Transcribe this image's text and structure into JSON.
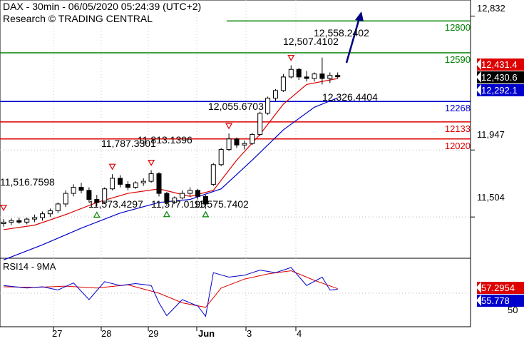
{
  "header": {
    "line1": "DAX - 30min - 06/05/2020 05:24:39 (UTC+2)",
    "line2": "Research © TRADING CENTRAL"
  },
  "levels": [
    {
      "label": "12800",
      "value": 12800,
      "color": "#008000"
    },
    {
      "label": "12590",
      "value": 12590,
      "color": "#008000"
    },
    {
      "label": "12268",
      "value": 12268,
      "color": "#0000cc"
    },
    {
      "label": "12133",
      "value": 12133,
      "color": "#dd0000"
    },
    {
      "label": "12020",
      "value": 12020,
      "color": "#dd0000"
    }
  ],
  "price_axis": [
    "12,832",
    "11,947",
    "11,504"
  ],
  "tags": [
    {
      "text": "12,431.4",
      "color": "#dd0000",
      "value": 12431.4
    },
    {
      "text": "12,430.6",
      "color": "#000000",
      "value": 12430.6
    },
    {
      "text": "12,292.1",
      "color": "#0000cc",
      "value": 12292.1
    }
  ],
  "annotations": [
    {
      "text": "11,516.7598",
      "marker": "peak"
    },
    {
      "text": "11,787.3301",
      "marker": "peak"
    },
    {
      "text": "11,813.1396",
      "marker": "peak"
    },
    {
      "text": "12,055.6703",
      "marker": "peak"
    },
    {
      "text": "12,507.4102",
      "marker": "peak"
    },
    {
      "text": "12,558.2402",
      "marker": "none"
    },
    {
      "text": "11,573.4297",
      "marker": "trough"
    },
    {
      "text": "11,577.0195",
      "marker": "trough"
    },
    {
      "text": "11,575.7402",
      "marker": "trough"
    },
    {
      "text": "12,326.4404",
      "marker": "none"
    }
  ],
  "rsi": {
    "title": "RSI14 - 9MA",
    "tags": [
      {
        "text": "57.2954",
        "color": "#dd0000",
        "value": 57.2954
      },
      {
        "text": "55.778",
        "color": "#0000cc",
        "value": 55.778
      }
    ],
    "axis": [
      "50"
    ]
  },
  "dates": [
    "27",
    "28",
    "29",
    "Jun",
    "3",
    "4"
  ],
  "chart_data": {
    "type": "candlestick",
    "ylim": [
      11250,
      12920
    ],
    "candles": [
      {
        "x": 1,
        "o": 11460,
        "h": 11490,
        "l": 11440,
        "c": 11470
      },
      {
        "x": 2,
        "o": 11470,
        "h": 11495,
        "l": 11450,
        "c": 11480
      },
      {
        "x": 3,
        "o": 11480,
        "h": 11500,
        "l": 11460,
        "c": 11470
      },
      {
        "x": 4,
        "o": 11470,
        "h": 11500,
        "l": 11455,
        "c": 11490
      },
      {
        "x": 5,
        "o": 11490,
        "h": 11520,
        "l": 11470,
        "c": 11500
      },
      {
        "x": 6,
        "o": 11500,
        "h": 11540,
        "l": 11480,
        "c": 11525
      },
      {
        "x": 7,
        "o": 11525,
        "h": 11560,
        "l": 11505,
        "c": 11545
      },
      {
        "x": 8,
        "o": 11545,
        "h": 11600,
        "l": 11530,
        "c": 11590
      },
      {
        "x": 9,
        "o": 11590,
        "h": 11680,
        "l": 11570,
        "c": 11660
      },
      {
        "x": 10,
        "o": 11660,
        "h": 11720,
        "l": 11640,
        "c": 11700
      },
      {
        "x": 11,
        "o": 11700,
        "h": 11730,
        "l": 11660,
        "c": 11680
      },
      {
        "x": 12,
        "o": 11680,
        "h": 11700,
        "l": 11600,
        "c": 11620
      },
      {
        "x": 13,
        "o": 11620,
        "h": 11650,
        "l": 11573,
        "c": 11600
      },
      {
        "x": 14,
        "o": 11600,
        "h": 11700,
        "l": 11590,
        "c": 11690
      },
      {
        "x": 15,
        "o": 11690,
        "h": 11787,
        "l": 11680,
        "c": 11760
      },
      {
        "x": 16,
        "o": 11760,
        "h": 11780,
        "l": 11700,
        "c": 11720
      },
      {
        "x": 17,
        "o": 11720,
        "h": 11740,
        "l": 11680,
        "c": 11700
      },
      {
        "x": 18,
        "o": 11700,
        "h": 11740,
        "l": 11690,
        "c": 11730
      },
      {
        "x": 19,
        "o": 11730,
        "h": 11760,
        "l": 11710,
        "c": 11740
      },
      {
        "x": 20,
        "o": 11740,
        "h": 11813,
        "l": 11730,
        "c": 11790
      },
      {
        "x": 21,
        "o": 11790,
        "h": 11800,
        "l": 11640,
        "c": 11660
      },
      {
        "x": 22,
        "o": 11660,
        "h": 11670,
        "l": 11577,
        "c": 11600
      },
      {
        "x": 23,
        "o": 11600,
        "h": 11640,
        "l": 11590,
        "c": 11630
      },
      {
        "x": 24,
        "o": 11630,
        "h": 11680,
        "l": 11620,
        "c": 11660
      },
      {
        "x": 25,
        "o": 11660,
        "h": 11700,
        "l": 11640,
        "c": 11680
      },
      {
        "x": 26,
        "o": 11680,
        "h": 11690,
        "l": 11620,
        "c": 11640
      },
      {
        "x": 27,
        "o": 11640,
        "h": 11650,
        "l": 11576,
        "c": 11590
      },
      {
        "x": 28,
        "o": 11720,
        "h": 11860,
        "l": 11710,
        "c": 11850
      },
      {
        "x": 29,
        "o": 11850,
        "h": 11960,
        "l": 11840,
        "c": 11950
      },
      {
        "x": 30,
        "o": 11950,
        "h": 12056,
        "l": 11940,
        "c": 12020
      },
      {
        "x": 31,
        "o": 12020,
        "h": 12030,
        "l": 11960,
        "c": 11980
      },
      {
        "x": 32,
        "o": 11980,
        "h": 12010,
        "l": 11950,
        "c": 11990
      },
      {
        "x": 33,
        "o": 11990,
        "h": 12060,
        "l": 11980,
        "c": 12050
      },
      {
        "x": 34,
        "o": 12050,
        "h": 12200,
        "l": 12040,
        "c": 12190
      },
      {
        "x": 35,
        "o": 12190,
        "h": 12300,
        "l": 12180,
        "c": 12290
      },
      {
        "x": 36,
        "o": 12290,
        "h": 12350,
        "l": 12270,
        "c": 12340
      },
      {
        "x": 37,
        "o": 12340,
        "h": 12450,
        "l": 12330,
        "c": 12430
      },
      {
        "x": 38,
        "o": 12430,
        "h": 12507,
        "l": 12420,
        "c": 12480
      },
      {
        "x": 39,
        "o": 12480,
        "h": 12490,
        "l": 12410,
        "c": 12430
      },
      {
        "x": 40,
        "o": 12430,
        "h": 12470,
        "l": 12400,
        "c": 12420
      },
      {
        "x": 41,
        "o": 12420,
        "h": 12460,
        "l": 12400,
        "c": 12450
      },
      {
        "x": 42,
        "o": 12450,
        "h": 12558,
        "l": 12380,
        "c": 12420
      },
      {
        "x": 43,
        "o": 12420,
        "h": 12460,
        "l": 12390,
        "c": 12440
      },
      {
        "x": 44,
        "o": 12440,
        "h": 12460,
        "l": 12420,
        "c": 12431
      }
    ],
    "ma_fast": [
      [
        1,
        11420
      ],
      [
        5,
        11450
      ],
      [
        9,
        11520
      ],
      [
        13,
        11600
      ],
      [
        17,
        11660
      ],
      [
        21,
        11690
      ],
      [
        25,
        11640
      ],
      [
        28,
        11680
      ],
      [
        31,
        11880
      ],
      [
        34,
        12050
      ],
      [
        37,
        12250
      ],
      [
        40,
        12380
      ],
      [
        44,
        12420
      ]
    ],
    "ma_slow": [
      [
        1,
        11220
      ],
      [
        6,
        11320
      ],
      [
        11,
        11430
      ],
      [
        16,
        11530
      ],
      [
        21,
        11600
      ],
      [
        25,
        11620
      ],
      [
        29,
        11690
      ],
      [
        33,
        11880
      ],
      [
        37,
        12080
      ],
      [
        41,
        12230
      ],
      [
        44,
        12292
      ]
    ],
    "rsi_line": [
      [
        1,
        62
      ],
      [
        4,
        58
      ],
      [
        6,
        60
      ],
      [
        8,
        55
      ],
      [
        10,
        66
      ],
      [
        12,
        40
      ],
      [
        14,
        68
      ],
      [
        16,
        62
      ],
      [
        18,
        65
      ],
      [
        20,
        62
      ],
      [
        21,
        35
      ],
      [
        22,
        15
      ],
      [
        24,
        40
      ],
      [
        26,
        30
      ],
      [
        27,
        14
      ],
      [
        28,
        82
      ],
      [
        30,
        75
      ],
      [
        32,
        78
      ],
      [
        34,
        86
      ],
      [
        36,
        82
      ],
      [
        38,
        90
      ],
      [
        40,
        62
      ],
      [
        42,
        75
      ],
      [
        43,
        55
      ],
      [
        44,
        56
      ]
    ],
    "rsi_ma": [
      [
        1,
        60
      ],
      [
        5,
        59
      ],
      [
        9,
        61
      ],
      [
        13,
        58
      ],
      [
        17,
        63
      ],
      [
        21,
        50
      ],
      [
        24,
        35
      ],
      [
        27,
        28
      ],
      [
        29,
        58
      ],
      [
        32,
        72
      ],
      [
        35,
        80
      ],
      [
        38,
        85
      ],
      [
        41,
        70
      ],
      [
        44,
        57
      ]
    ],
    "rsi_ylim": [
      0,
      100
    ]
  }
}
